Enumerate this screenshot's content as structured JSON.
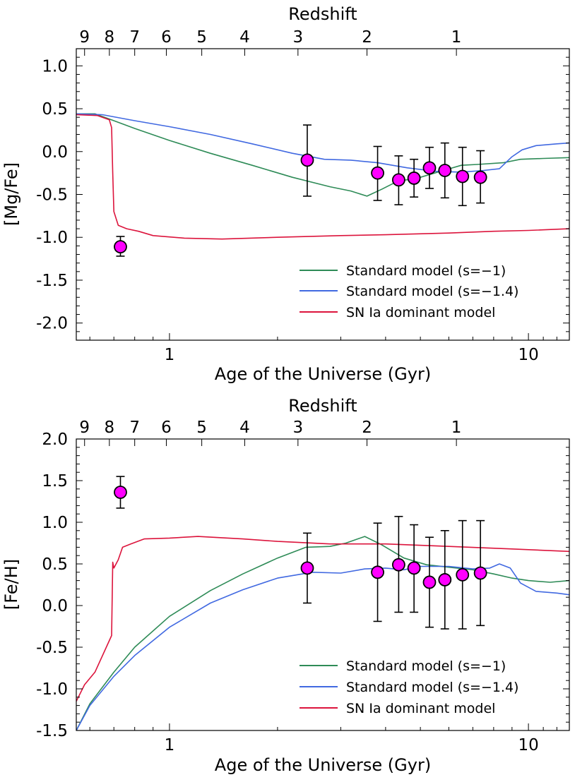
{
  "colors": {
    "standard_s1": "#2e8b57",
    "standard_s14": "#4169e1",
    "snia": "#dc143c",
    "points": "#ff00ff"
  },
  "chart_data": [
    {
      "type": "line",
      "id": "mgfe",
      "title": "",
      "xlabel": "Age of the Universe (Gyr)",
      "ylabel": "[Mg/Fe]",
      "top_axis_label": "Redshift",
      "xscale": "log",
      "xlim": [
        0.55,
        13.0
      ],
      "ylim": [
        -2.2,
        1.2
      ],
      "yticks": [
        1.0,
        0.5,
        0.0,
        -0.5,
        -1.0,
        -1.5,
        -2.0
      ],
      "ytick_labels": [
        "1.0",
        "0.5",
        "0.0",
        "-0.5",
        "-1.0",
        "-1.5",
        "-2.0"
      ],
      "xticks": [
        1,
        10
      ],
      "xtick_labels": [
        "1",
        "10"
      ],
      "redshift_ticks": [
        {
          "label": "9",
          "age": 0.58
        },
        {
          "label": "8",
          "age": 0.68
        },
        {
          "label": "7",
          "age": 0.8
        },
        {
          "label": "6",
          "age": 0.98
        },
        {
          "label": "5",
          "age": 1.23
        },
        {
          "label": "4",
          "age": 1.62
        },
        {
          "label": "3",
          "age": 2.28
        },
        {
          "label": "2",
          "age": 3.55
        },
        {
          "label": "1",
          "age": 6.3
        }
      ],
      "legend": {
        "position": "lower-right",
        "entries": [
          "Standard model (s=−1)",
          "Standard model (s=−1.4)",
          "SN Ia dominant model"
        ]
      },
      "series": [
        {
          "name": "Standard model (s=−1)",
          "color_key": "standard_s1",
          "points": [
            [
              0.55,
              0.44
            ],
            [
              0.62,
              0.44
            ],
            [
              0.7,
              0.36
            ],
            [
              0.8,
              0.27
            ],
            [
              1.0,
              0.13
            ],
            [
              1.3,
              -0.02
            ],
            [
              1.7,
              -0.16
            ],
            [
              2.2,
              -0.3
            ],
            [
              2.8,
              -0.41
            ],
            [
              3.2,
              -0.46
            ],
            [
              3.55,
              -0.52
            ],
            [
              3.9,
              -0.44
            ],
            [
              4.3,
              -0.35
            ],
            [
              5.0,
              -0.3
            ],
            [
              5.8,
              -0.22
            ],
            [
              6.5,
              -0.16
            ],
            [
              7.2,
              -0.15
            ],
            [
              8.5,
              -0.13
            ],
            [
              9.5,
              -0.09
            ],
            [
              11.0,
              -0.08
            ],
            [
              13.0,
              -0.07
            ]
          ]
        },
        {
          "name": "Standard model (s=−1.4)",
          "color_key": "standard_s14",
          "points": [
            [
              0.55,
              0.44
            ],
            [
              0.65,
              0.43
            ],
            [
              0.8,
              0.36
            ],
            [
              1.0,
              0.29
            ],
            [
              1.3,
              0.2
            ],
            [
              1.7,
              0.09
            ],
            [
              2.2,
              -0.02
            ],
            [
              2.7,
              -0.09
            ],
            [
              3.2,
              -0.1
            ],
            [
              3.8,
              -0.13
            ],
            [
              4.6,
              -0.19
            ],
            [
              5.5,
              -0.23
            ],
            [
              6.5,
              -0.24
            ],
            [
              7.5,
              -0.22
            ],
            [
              8.3,
              -0.2
            ],
            [
              9.0,
              -0.06
            ],
            [
              9.6,
              0.02
            ],
            [
              10.5,
              0.07
            ],
            [
              12.0,
              0.09
            ],
            [
              13.0,
              0.1
            ]
          ]
        },
        {
          "name": "SN Ia dominant model",
          "color_key": "snia",
          "points": [
            [
              0.55,
              0.43
            ],
            [
              0.63,
              0.42
            ],
            [
              0.68,
              0.37
            ],
            [
              0.69,
              0.28
            ],
            [
              0.695,
              -0.25
            ],
            [
              0.7,
              -0.7
            ],
            [
              0.72,
              -0.86
            ],
            [
              0.76,
              -0.9
            ],
            [
              0.82,
              -0.93
            ],
            [
              0.9,
              -0.98
            ],
            [
              1.1,
              -1.01
            ],
            [
              1.4,
              -1.02
            ],
            [
              2.0,
              -1.0
            ],
            [
              3.0,
              -0.98
            ],
            [
              4.0,
              -0.97
            ],
            [
              6.0,
              -0.95
            ],
            [
              8.0,
              -0.93
            ],
            [
              10.0,
              -0.92
            ],
            [
              13.0,
              -0.9
            ]
          ]
        }
      ],
      "observations": [
        {
          "x": 0.73,
          "y": -1.11,
          "yerr_low": 0.11,
          "yerr_high": 0.12
        },
        {
          "x": 2.42,
          "y": -0.1,
          "yerr_low": 0.42,
          "yerr_high": 0.41
        },
        {
          "x": 3.8,
          "y": -0.25,
          "yerr_low": 0.32,
          "yerr_high": 0.31
        },
        {
          "x": 4.35,
          "y": -0.33,
          "yerr_low": 0.29,
          "yerr_high": 0.28
        },
        {
          "x": 4.8,
          "y": -0.31,
          "yerr_low": 0.22,
          "yerr_high": 0.22
        },
        {
          "x": 5.3,
          "y": -0.19,
          "yerr_low": 0.24,
          "yerr_high": 0.24
        },
        {
          "x": 5.85,
          "y": -0.22,
          "yerr_low": 0.32,
          "yerr_high": 0.32
        },
        {
          "x": 6.55,
          "y": -0.29,
          "yerr_low": 0.34,
          "yerr_high": 0.34
        },
        {
          "x": 7.35,
          "y": -0.3,
          "yerr_low": 0.3,
          "yerr_high": 0.31
        }
      ]
    },
    {
      "type": "line",
      "id": "feh",
      "title": "",
      "xlabel": "Age of the Universe (Gyr)",
      "ylabel": "[Fe/H]",
      "top_axis_label": "Redshift",
      "xscale": "log",
      "xlim": [
        0.55,
        13.0
      ],
      "ylim": [
        -1.5,
        2.0
      ],
      "yticks": [
        2.0,
        1.5,
        1.0,
        0.5,
        0.0,
        -0.5,
        -1.0,
        -1.5
      ],
      "ytick_labels": [
        "2.0",
        "1.5",
        "1.0",
        "0.5",
        "0.0",
        "-0.5",
        "-1.0",
        "-1.5"
      ],
      "xticks": [
        1,
        10
      ],
      "xtick_labels": [
        "1",
        "10"
      ],
      "redshift_ticks": [
        {
          "label": "9",
          "age": 0.58
        },
        {
          "label": "8",
          "age": 0.68
        },
        {
          "label": "7",
          "age": 0.8
        },
        {
          "label": "6",
          "age": 0.98
        },
        {
          "label": "5",
          "age": 1.23
        },
        {
          "label": "4",
          "age": 1.62
        },
        {
          "label": "3",
          "age": 2.28
        },
        {
          "label": "2",
          "age": 3.55
        },
        {
          "label": "1",
          "age": 6.3
        }
      ],
      "legend": {
        "position": "lower-right",
        "entries": [
          "Standard model (s=−1)",
          "Standard model (s=−1.4)",
          "SN Ia dominant model"
        ]
      },
      "series": [
        {
          "name": "Standard model (s=−1)",
          "color_key": "standard_s1",
          "points": [
            [
              0.55,
              -1.5
            ],
            [
              0.6,
              -1.18
            ],
            [
              0.7,
              -0.8
            ],
            [
              0.8,
              -0.5
            ],
            [
              1.0,
              -0.13
            ],
            [
              1.3,
              0.18
            ],
            [
              1.6,
              0.38
            ],
            [
              2.0,
              0.57
            ],
            [
              2.4,
              0.7
            ],
            [
              2.8,
              0.71
            ],
            [
              3.1,
              0.75
            ],
            [
              3.5,
              0.83
            ],
            [
              3.9,
              0.73
            ],
            [
              4.5,
              0.57
            ],
            [
              5.2,
              0.49
            ],
            [
              6.0,
              0.46
            ],
            [
              7.0,
              0.43
            ],
            [
              8.0,
              0.38
            ],
            [
              9.0,
              0.33
            ],
            [
              10.0,
              0.3
            ],
            [
              11.5,
              0.28
            ],
            [
              13.0,
              0.3
            ]
          ]
        },
        {
          "name": "Standard model (s=−1.4)",
          "color_key": "standard_s14",
          "points": [
            [
              0.55,
              -1.5
            ],
            [
              0.6,
              -1.2
            ],
            [
              0.7,
              -0.85
            ],
            [
              0.8,
              -0.6
            ],
            [
              1.0,
              -0.26
            ],
            [
              1.3,
              0.03
            ],
            [
              1.6,
              0.19
            ],
            [
              2.0,
              0.33
            ],
            [
              2.5,
              0.4
            ],
            [
              3.0,
              0.39
            ],
            [
              3.5,
              0.44
            ],
            [
              4.0,
              0.45
            ],
            [
              4.5,
              0.43
            ],
            [
              5.0,
              0.47
            ],
            [
              6.0,
              0.47
            ],
            [
              7.0,
              0.44
            ],
            [
              7.8,
              0.45
            ],
            [
              8.3,
              0.5
            ],
            [
              8.9,
              0.45
            ],
            [
              9.5,
              0.27
            ],
            [
              10.5,
              0.17
            ],
            [
              12.0,
              0.15
            ],
            [
              13.0,
              0.13
            ]
          ]
        },
        {
          "name": "SN Ia dominant model",
          "color_key": "snia",
          "points": [
            [
              0.55,
              -1.15
            ],
            [
              0.58,
              -0.95
            ],
            [
              0.62,
              -0.8
            ],
            [
              0.69,
              -0.36
            ],
            [
              0.695,
              0.52
            ],
            [
              0.7,
              0.45
            ],
            [
              0.72,
              0.55
            ],
            [
              0.74,
              0.7
            ],
            [
              0.78,
              0.74
            ],
            [
              0.85,
              0.8
            ],
            [
              1.0,
              0.81
            ],
            [
              1.2,
              0.83
            ],
            [
              1.6,
              0.8
            ],
            [
              2.0,
              0.77
            ],
            [
              2.8,
              0.74
            ],
            [
              4.0,
              0.74
            ],
            [
              6.0,
              0.71
            ],
            [
              9.0,
              0.68
            ],
            [
              13.0,
              0.65
            ]
          ]
        }
      ],
      "observations": [
        {
          "x": 0.73,
          "y": 1.36,
          "yerr_low": 0.19,
          "yerr_high": 0.19
        },
        {
          "x": 2.42,
          "y": 0.45,
          "yerr_low": 0.42,
          "yerr_high": 0.42
        },
        {
          "x": 3.8,
          "y": 0.4,
          "yerr_low": 0.59,
          "yerr_high": 0.59
        },
        {
          "x": 4.35,
          "y": 0.49,
          "yerr_low": 0.57,
          "yerr_high": 0.58
        },
        {
          "x": 4.8,
          "y": 0.45,
          "yerr_low": 0.53,
          "yerr_high": 0.52
        },
        {
          "x": 5.3,
          "y": 0.28,
          "yerr_low": 0.54,
          "yerr_high": 0.54
        },
        {
          "x": 5.85,
          "y": 0.31,
          "yerr_low": 0.59,
          "yerr_high": 0.59
        },
        {
          "x": 6.55,
          "y": 0.37,
          "yerr_low": 0.65,
          "yerr_high": 0.65
        },
        {
          "x": 7.35,
          "y": 0.39,
          "yerr_low": 0.63,
          "yerr_high": 0.63
        }
      ]
    }
  ]
}
